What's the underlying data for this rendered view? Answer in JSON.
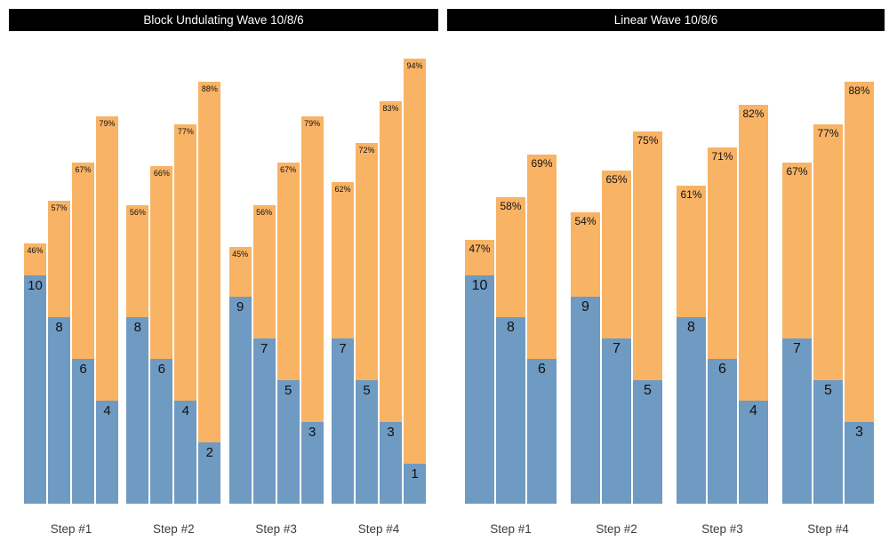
{
  "colors": {
    "reps_bar": "#6f9ac2",
    "intensity_bar": "#f8b365",
    "title_bg": "#000000",
    "title_text": "#ffffff",
    "label_text": "#111111",
    "axis_label_text": "#3d3d3d"
  },
  "charts": [
    {
      "title": "Block Undulating Wave 10/8/6",
      "groups": [
        {
          "label": "Step #1",
          "bars": [
            {
              "reps": "10",
              "pct": "46%"
            },
            {
              "reps": "8",
              "pct": "57%"
            },
            {
              "reps": "6",
              "pct": "67%"
            },
            {
              "reps": "4",
              "pct": "79%"
            }
          ]
        },
        {
          "label": "Step #2",
          "bars": [
            {
              "reps": "8",
              "pct": "56%"
            },
            {
              "reps": "6",
              "pct": "66%"
            },
            {
              "reps": "4",
              "pct": "77%"
            },
            {
              "reps": "2",
              "pct": "88%"
            }
          ]
        },
        {
          "label": "Step #3",
          "bars": [
            {
              "reps": "9",
              "pct": "45%"
            },
            {
              "reps": "7",
              "pct": "56%"
            },
            {
              "reps": "5",
              "pct": "67%"
            },
            {
              "reps": "3",
              "pct": "79%"
            }
          ]
        },
        {
          "label": "Step #4",
          "bars": [
            {
              "reps": "7",
              "pct": "62%"
            },
            {
              "reps": "5",
              "pct": "72%"
            },
            {
              "reps": "3",
              "pct": "83%"
            },
            {
              "reps": "1",
              "pct": "94%"
            }
          ]
        }
      ]
    },
    {
      "title": "Linear Wave 10/8/6",
      "groups": [
        {
          "label": "Step #1",
          "bars": [
            {
              "reps": "10",
              "pct": "47%"
            },
            {
              "reps": "8",
              "pct": "58%"
            },
            {
              "reps": "6",
              "pct": "69%"
            }
          ]
        },
        {
          "label": "Step #2",
          "bars": [
            {
              "reps": "9",
              "pct": "54%"
            },
            {
              "reps": "7",
              "pct": "65%"
            },
            {
              "reps": "5",
              "pct": "75%"
            }
          ]
        },
        {
          "label": "Step #3",
          "bars": [
            {
              "reps": "8",
              "pct": "61%"
            },
            {
              "reps": "6",
              "pct": "71%"
            },
            {
              "reps": "4",
              "pct": "82%"
            }
          ]
        },
        {
          "label": "Step #4",
          "bars": [
            {
              "reps": "7",
              "pct": "67%"
            },
            {
              "reps": "5",
              "pct": "77%"
            },
            {
              "reps": "3",
              "pct": "88%"
            }
          ]
        }
      ]
    }
  ],
  "chart_data": [
    {
      "type": "bar",
      "subtype": "grouped-stacked-columns",
      "title": "Block Undulating Wave 10/8/6",
      "categories": [
        "Step #1",
        "Step #2",
        "Step #3",
        "Step #4"
      ],
      "series": [
        {
          "name": "reps",
          "color": "#6f9ac2",
          "values": [
            [
              10,
              8,
              6,
              4
            ],
            [
              8,
              6,
              4,
              2
            ],
            [
              9,
              7,
              5,
              3
            ],
            [
              7,
              5,
              3,
              1
            ]
          ]
        },
        {
          "name": "intensity_pct",
          "color": "#f8b365",
          "values": [
            [
              46,
              57,
              67,
              79
            ],
            [
              56,
              66,
              77,
              88
            ],
            [
              45,
              56,
              67,
              79
            ],
            [
              62,
              72,
              83,
              94
            ]
          ]
        }
      ],
      "xlabel": "",
      "ylabel": "",
      "y_axis_visible": false,
      "grid": false,
      "legend_position": "none",
      "data_labels": "reps shown at top of blue segment, intensity % shown at top of orange bar"
    },
    {
      "type": "bar",
      "subtype": "grouped-stacked-columns",
      "title": "Linear Wave 10/8/6",
      "categories": [
        "Step #1",
        "Step #2",
        "Step #3",
        "Step #4"
      ],
      "series": [
        {
          "name": "reps",
          "color": "#6f9ac2",
          "values": [
            [
              10,
              8,
              6
            ],
            [
              9,
              7,
              5
            ],
            [
              8,
              6,
              4
            ],
            [
              7,
              5,
              3
            ]
          ]
        },
        {
          "name": "intensity_pct",
          "color": "#f8b365",
          "values": [
            [
              47,
              58,
              69
            ],
            [
              54,
              65,
              75
            ],
            [
              61,
              71,
              82
            ],
            [
              67,
              77,
              88
            ]
          ]
        }
      ],
      "xlabel": "",
      "ylabel": "",
      "y_axis_visible": false,
      "grid": false,
      "legend_position": "none",
      "data_labels": "reps shown at top of blue segment, intensity % shown at top of orange bar"
    }
  ]
}
